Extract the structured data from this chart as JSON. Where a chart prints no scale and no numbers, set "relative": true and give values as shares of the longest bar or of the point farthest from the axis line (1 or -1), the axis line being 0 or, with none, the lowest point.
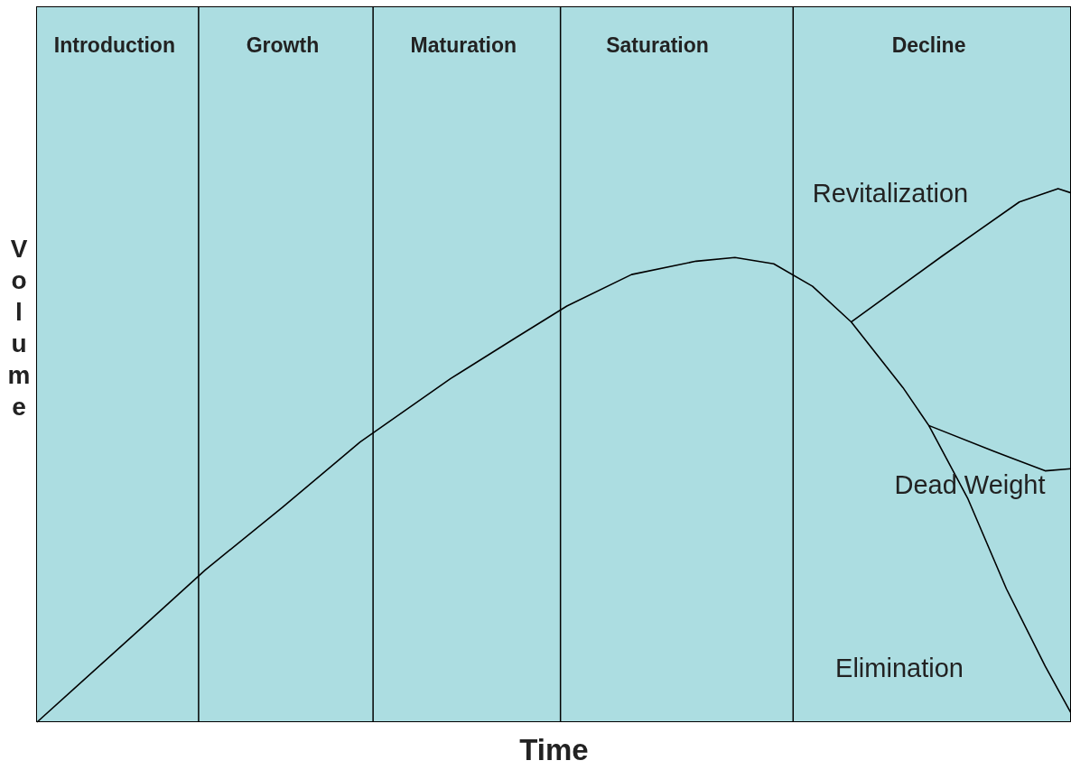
{
  "chart_data": {
    "type": "line",
    "relative": true,
    "xlabel": "Time",
    "ylabel": "Volume",
    "tick_labels": "x",
    "marker": "none",
    "line_style": "solid",
    "categories": [
      null,
      null,
      null,
      null,
      null,
      null,
      "Introduction",
      null,
      null,
      null,
      null,
      null,
      null,
      null,
      null,
      null,
      null,
      null,
      null,
      "Growth",
      null,
      null,
      null,
      null,
      null,
      null,
      null,
      null,
      null,
      null,
      null,
      null,
      null,
      "Maturation",
      null,
      null,
      null,
      null,
      null,
      null,
      null,
      null,
      null,
      null,
      null,
      null,
      null,
      null,
      "Saturation",
      null,
      null,
      null,
      null,
      null,
      null,
      null,
      null,
      null,
      null,
      null,
      null,
      null,
      null,
      null,
      null,
      null,
      null,
      null,
      null,
      "Decline",
      null,
      null,
      null,
      null,
      null,
      null,
      null,
      null,
      null,
      null,
      null
    ],
    "series": [
      {
        "name": "Elimination",
        "color": "#000000",
        "values": [
          0,
          null,
          null,
          null,
          null,
          null,
          null,
          null,
          0.175,
          null,
          null,
          null,
          null,
          0.285,
          null,
          null,
          null,
          null,
          null,
          0.403,
          null,
          null,
          null,
          null,
          null,
          0.525,
          null,
          null,
          null,
          null,
          null,
          null,
          0.644,
          null,
          null,
          null,
          null,
          0.72,
          null,
          null,
          null,
          0.78,
          null,
          null,
          null,
          null,
          0.839,
          null,
          null,
          null,
          null,
          0.864,
          null,
          null,
          0.871,
          null,
          null,
          0.859,
          null,
          null,
          0.817,
          null,
          null,
          0.75,
          null,
          null,
          null,
          0.627,
          null,
          0.556,
          null,
          null,
          0.42,
          null,
          null,
          0.25,
          null,
          null,
          0.105,
          null,
          0.017
        ]
      },
      {
        "name": "Revitalization",
        "color": "#000000",
        "values": [
          null,
          null,
          null,
          null,
          null,
          null,
          null,
          null,
          null,
          null,
          null,
          null,
          null,
          null,
          null,
          null,
          null,
          null,
          null,
          null,
          null,
          null,
          null,
          null,
          null,
          null,
          null,
          null,
          null,
          null,
          null,
          null,
          null,
          null,
          null,
          null,
          null,
          null,
          null,
          null,
          null,
          null,
          null,
          null,
          null,
          null,
          null,
          null,
          null,
          null,
          null,
          null,
          null,
          null,
          null,
          null,
          null,
          null,
          null,
          null,
          null,
          null,
          null,
          0.75,
          null,
          null,
          null,
          null,
          null,
          null,
          0.873,
          null,
          null,
          null,
          null,
          null,
          0.975,
          null,
          null,
          1,
          0.992
        ]
      },
      {
        "name": "Dead Weight",
        "color": "#000000",
        "values": [
          null,
          null,
          null,
          null,
          null,
          null,
          null,
          null,
          null,
          null,
          null,
          null,
          null,
          null,
          null,
          null,
          null,
          null,
          null,
          null,
          null,
          null,
          null,
          null,
          null,
          null,
          null,
          null,
          null,
          null,
          null,
          null,
          null,
          null,
          null,
          null,
          null,
          null,
          null,
          null,
          null,
          null,
          null,
          null,
          null,
          null,
          null,
          null,
          null,
          null,
          null,
          null,
          null,
          null,
          null,
          null,
          null,
          null,
          null,
          null,
          null,
          null,
          null,
          null,
          null,
          null,
          null,
          null,
          null,
          0.556,
          null,
          null,
          null,
          null,
          0.508,
          null,
          null,
          null,
          0.471,
          null,
          0.475
        ]
      }
    ]
  }
}
